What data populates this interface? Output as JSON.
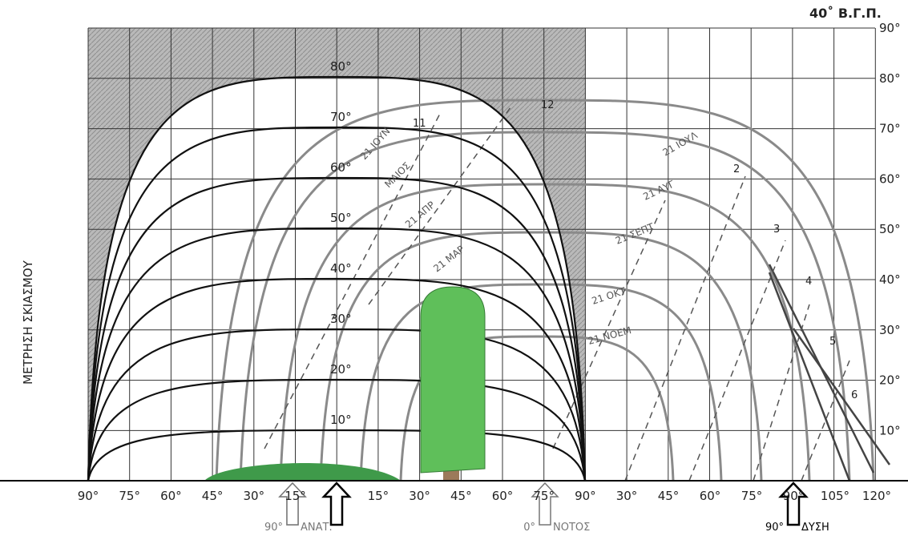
{
  "header": {
    "latitude": "40˚ Β.Γ.Π."
  },
  "side_label": "ΜΕΤΡΗΣΗ ΣΚΙΑΣΜΟΥ",
  "right_axis": [
    "90°",
    "80°",
    "70°",
    "60°",
    "50°",
    "40°",
    "30°",
    "20°",
    "10°"
  ],
  "arc_labels": [
    "80°",
    "70°",
    "60°",
    "50°",
    "40°",
    "30°",
    "20°",
    "10°"
  ],
  "bottom_left": [
    "90°",
    "75°",
    "60°",
    "45°",
    "30°",
    "15°",
    "15°",
    "30°",
    "45°",
    "60°",
    "75°",
    "90°"
  ],
  "bottom_right": [
    "30°",
    "45°",
    "60°",
    "75°",
    "90°",
    "105°",
    "120°"
  ],
  "directions": [
    {
      "angle": "90°",
      "name": "ΑΝΑΤ."
    },
    {
      "angle": "0°",
      "name": "ΝΟΤΟΣ"
    },
    {
      "angle": "90°",
      "name": "ΔΥΣΗ"
    }
  ],
  "months": [
    "21 ΙΟΥΝ",
    "ΜΑΙΟΣ",
    "21 ΑΠΡ",
    "21 ΜΑΡ",
    "21 ΙΟΥΛ",
    "21 ΑΥΓ",
    "21 ΣΕΠΤ",
    "21 ΟΚΤ",
    "21 ΝΟΕΜ"
  ],
  "hours": [
    "12",
    "11",
    "2",
    "3",
    "4",
    "5",
    "6"
  ]
}
